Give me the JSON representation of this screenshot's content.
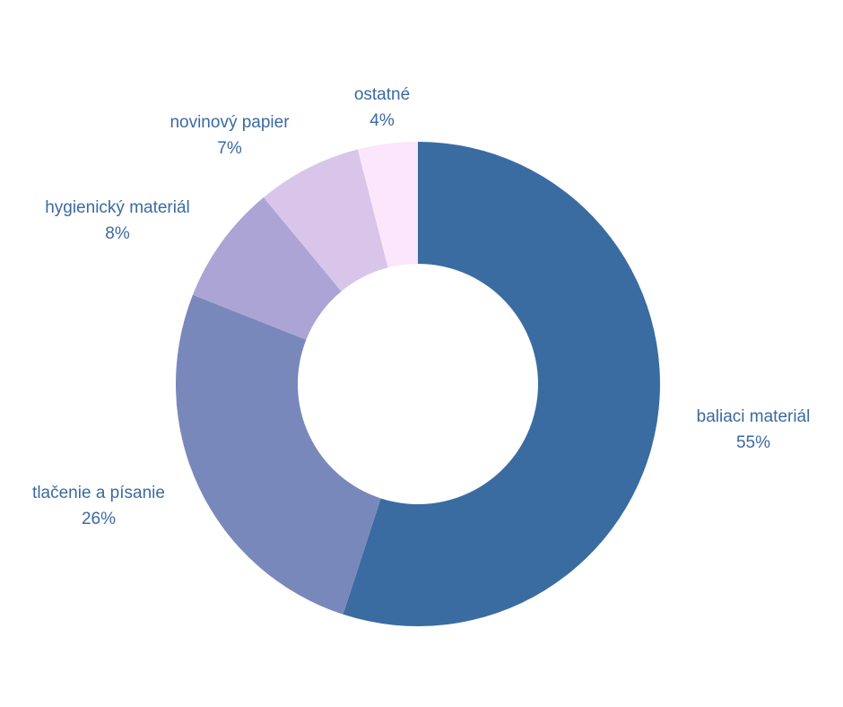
{
  "chart_data": {
    "type": "pie",
    "donut": true,
    "categories": [
      "baliaci materiál",
      "tlačenie a písanie",
      "hygienický materiál",
      "novinový papier",
      "ostatné"
    ],
    "values": [
      55,
      26,
      8,
      7,
      4
    ],
    "value_labels": [
      "55%",
      "26%",
      "8%",
      "7%",
      "4%"
    ],
    "colors": [
      "#3a6ca1",
      "#7988bb",
      "#aca4d4",
      "#d9c5ea",
      "#fbe6fb"
    ],
    "start_angle": "12 o'clock",
    "direction": "clockwise",
    "label_color": "#3b6aa0"
  }
}
